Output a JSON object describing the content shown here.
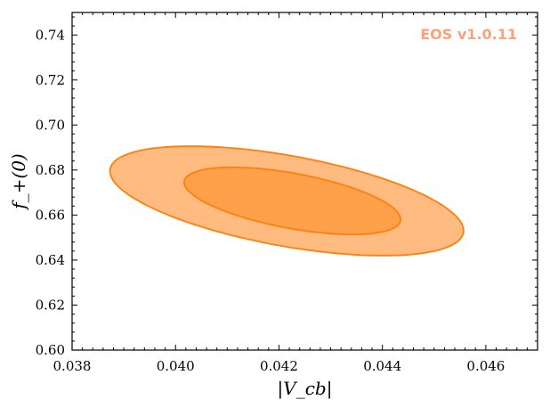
{
  "chart_data": {
    "type": "contour",
    "title": "",
    "xlabel": "|V_cb|",
    "ylabel": "f_+(0)",
    "xlim": [
      0.038,
      0.047
    ],
    "ylim": [
      0.6,
      0.75
    ],
    "x_ticks": [
      "0.038",
      "0.040",
      "0.042",
      "0.044",
      "0.046"
    ],
    "y_ticks": [
      "0.60",
      "0.62",
      "0.64",
      "0.66",
      "0.68",
      "0.70",
      "0.72",
      "0.74"
    ],
    "grid": false,
    "watermark": "EOS v1.0.11",
    "regions": [
      {
        "level": "outer",
        "center": [
          0.04215,
          0.6663
        ],
        "semi_axis_major_x": 0.0034,
        "semi_axis_major_y": -0.0153,
        "semi_axis_minor_x": 0.00036,
        "semi_axis_minor_y": 0.0189,
        "fill_color": "#ffbb80",
        "edge_color": "#ff7f0e"
      },
      {
        "level": "inner",
        "center": [
          0.04226,
          0.6663
        ],
        "semi_axis_major_x": 0.00208,
        "semi_axis_major_y": -0.0095,
        "semi_axis_minor_x": 0.00022,
        "semi_axis_minor_y": 0.0115,
        "fill_color": "#ffa04a",
        "edge_color": "#ff7f0e"
      }
    ]
  },
  "colors": {
    "watermark": "#ffa07a",
    "axis": "#000000"
  }
}
